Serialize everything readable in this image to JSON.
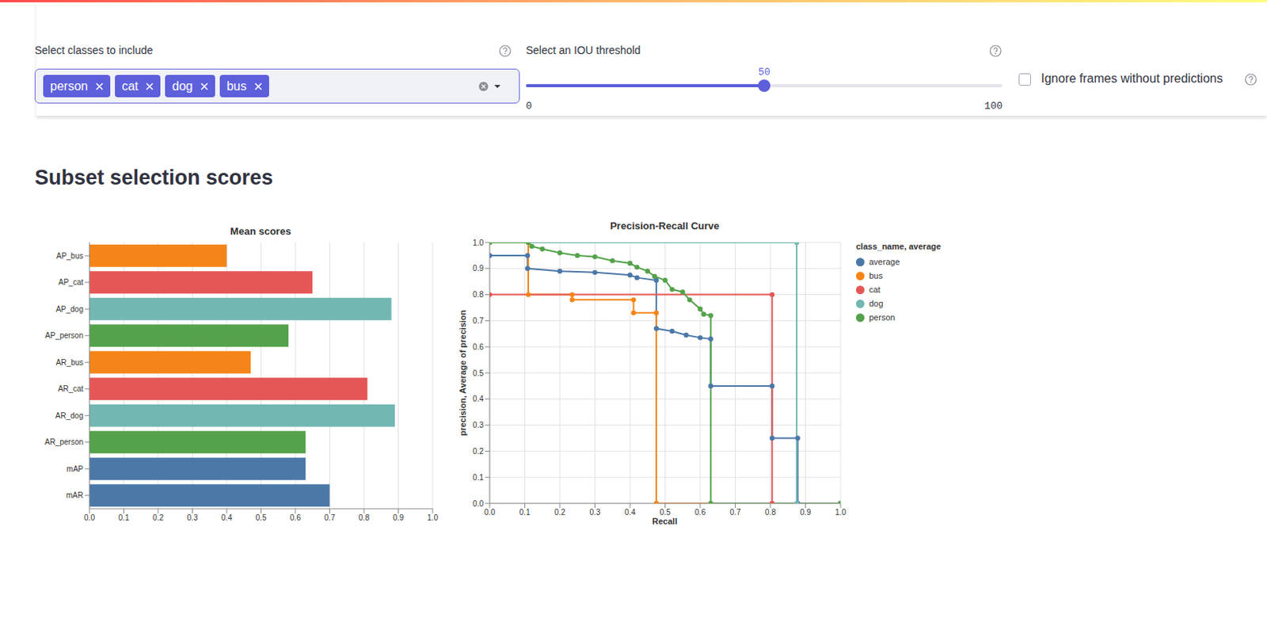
{
  "controls": {
    "classes": {
      "label": "Select classes to include",
      "selected": [
        "person",
        "cat",
        "dog",
        "bus"
      ]
    },
    "iou_threshold": {
      "label": "Select an IOU threshold",
      "min": 0,
      "max": 100,
      "value": 50
    },
    "checkbox": {
      "label": "Ignore frames without predictions",
      "checked": false
    }
  },
  "heading": "Subset selection scores",
  "chart_data": [
    {
      "type": "bar",
      "title": "Mean scores",
      "orientation": "horizontal",
      "categories": [
        "AP_bus",
        "AP_cat",
        "AP_dog",
        "AP_person",
        "AR_bus",
        "AR_cat",
        "AR_dog",
        "AR_person",
        "mAP",
        "mAR"
      ],
      "values": [
        0.4,
        0.65,
        0.88,
        0.58,
        0.47,
        0.81,
        0.89,
        0.63,
        0.63,
        0.7
      ],
      "colors": [
        "#f58518",
        "#e45756",
        "#72b7b2",
        "#54a24b",
        "#f58518",
        "#e45756",
        "#72b7b2",
        "#54a24b",
        "#4c78a8",
        "#4c78a8"
      ],
      "xlim": [
        0,
        1
      ],
      "xticks": [
        {
          "value": 0,
          "label": "0.0"
        },
        0.1,
        0.2,
        0.3,
        0.4,
        0.5,
        0.6,
        0.7,
        0.8,
        0.9,
        {
          "value": 1,
          "label": "1.0"
        }
      ],
      "grid": true
    },
    {
      "type": "line",
      "title": "Precision-Recall Curve",
      "x_label": "Recall",
      "y_label": "precision, Average of precision",
      "legend_title": "class_name, average",
      "legend": "right",
      "marker": "circle",
      "grid": true,
      "xlim": [
        0,
        1
      ],
      "ylim": [
        0,
        1
      ],
      "xticks": [
        {
          "value": 0,
          "label": "0.0"
        },
        0.1,
        0.2,
        0.3,
        0.4,
        0.5,
        0.6,
        0.7,
        0.8,
        0.9,
        {
          "value": 1,
          "label": "1.0"
        }
      ],
      "yticks": [
        {
          "value": 0,
          "label": "0.0"
        },
        0.1,
        0.2,
        0.3,
        0.4,
        0.5,
        0.6,
        0.7,
        0.8,
        0.9,
        {
          "value": 1,
          "label": "1.0"
        }
      ],
      "series": [
        {
          "name": "average",
          "color": "#4c78a8",
          "x": [
            0,
            0.108,
            0.108,
            0.2,
            0.3,
            0.4,
            0.42,
            0.475,
            0.475,
            0.52,
            0.56,
            0.6,
            0.63,
            0.63,
            0.805,
            0.805,
            0.878,
            0.878,
            1.0
          ],
          "values": [
            0.95,
            0.95,
            0.9,
            0.89,
            0.885,
            0.875,
            0.865,
            0.855,
            0.67,
            0.66,
            0.645,
            0.635,
            0.63,
            0.45,
            0.45,
            0.25,
            0.25,
            0,
            0
          ]
        },
        {
          "name": "bus",
          "color": "#f58518",
          "x": [
            0,
            0.11,
            0.11,
            0.235,
            0.235,
            0.41,
            0.41,
            0.475,
            0.475,
            1.0
          ],
          "values": [
            1,
            1,
            0.8,
            0.8,
            0.78,
            0.78,
            0.73,
            0.73,
            0,
            0
          ]
        },
        {
          "name": "cat",
          "color": "#e45756",
          "x": [
            0,
            0.805,
            0.805,
            1.0
          ],
          "values": [
            0.8,
            0.8,
            0,
            0
          ]
        },
        {
          "name": "dog",
          "color": "#72b7b2",
          "x": [
            0,
            0.875,
            0.875,
            1.0
          ],
          "values": [
            1,
            1,
            0,
            0
          ]
        },
        {
          "name": "person",
          "color": "#54a24b",
          "x": [
            0,
            0.11,
            0.12,
            0.15,
            0.2,
            0.25,
            0.3,
            0.35,
            0.4,
            0.42,
            0.45,
            0.47,
            0.5,
            0.52,
            0.55,
            0.57,
            0.6,
            0.61,
            0.63,
            0.63,
            1.0
          ],
          "values": [
            1,
            1,
            0.985,
            0.975,
            0.96,
            0.95,
            0.945,
            0.93,
            0.92,
            0.905,
            0.89,
            0.87,
            0.855,
            0.82,
            0.81,
            0.78,
            0.745,
            0.725,
            0.72,
            0,
            0
          ]
        }
      ]
    }
  ]
}
